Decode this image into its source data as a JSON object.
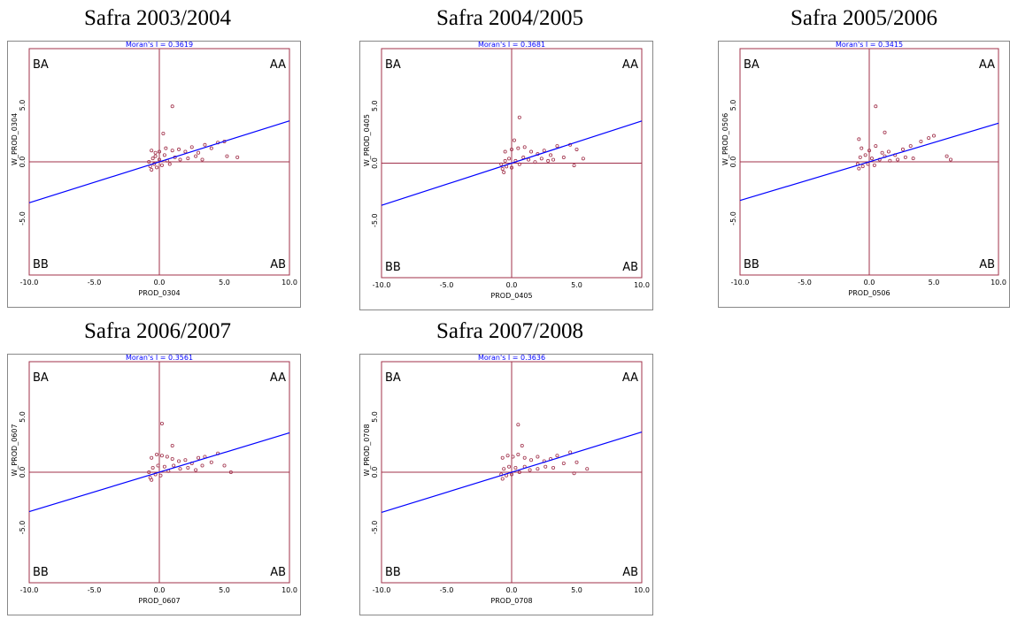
{
  "colors": {
    "regression": "#0000ff",
    "axes": "#a0304a",
    "points": "#a0304a",
    "frame": "#888888",
    "moran_text": "#0000ff"
  },
  "labels": {
    "quadrant_ha": "BA",
    "quadrant_hh": "AA",
    "quadrant_ll": "BB",
    "quadrant_lh": "AB"
  },
  "chart_data": [
    {
      "type": "scatter",
      "title": "Safra 2003/2004",
      "subtitle": "Moran's I = 0.3619",
      "xlabel": "PROD_0304",
      "ylabel": "W_PROD_0304",
      "xlim": [
        -10,
        10
      ],
      "ylim": [
        -10,
        10
      ],
      "slope": 0.3619,
      "x_ticks": [
        "-10.0",
        "-5.0",
        "0.0",
        "5.0",
        "10.0"
      ],
      "y_ticks": [
        "5.0",
        "0.0",
        "-5.0"
      ],
      "points": [
        [
          1.0,
          4.9
        ],
        [
          0.3,
          2.5
        ],
        [
          -0.6,
          1.0
        ],
        [
          -0.3,
          0.8
        ],
        [
          0.0,
          0.9
        ],
        [
          0.5,
          1.2
        ],
        [
          1.0,
          1.0
        ],
        [
          1.5,
          1.1
        ],
        [
          2.0,
          0.9
        ],
        [
          2.5,
          1.3
        ],
        [
          3.0,
          0.8
        ],
        [
          3.5,
          1.5
        ],
        [
          4.0,
          1.2
        ],
        [
          4.5,
          1.7
        ],
        [
          5.0,
          1.8
        ],
        [
          5.2,
          0.5
        ],
        [
          6.0,
          0.4
        ],
        [
          -0.8,
          0.0
        ],
        [
          -0.7,
          -0.4
        ],
        [
          -0.6,
          -0.7
        ],
        [
          -0.5,
          0.3
        ],
        [
          -0.4,
          -0.2
        ],
        [
          -0.3,
          0.5
        ],
        [
          -0.2,
          -0.5
        ],
        [
          0.0,
          0.2
        ],
        [
          0.2,
          -0.3
        ],
        [
          0.4,
          0.6
        ],
        [
          0.6,
          0.1
        ],
        [
          0.8,
          -0.2
        ],
        [
          1.2,
          0.4
        ],
        [
          1.6,
          0.2
        ],
        [
          2.2,
          0.3
        ],
        [
          2.8,
          0.5
        ],
        [
          3.3,
          0.2
        ]
      ]
    },
    {
      "type": "scatter",
      "title": "Safra 2004/2005",
      "subtitle": "Moran's I = 0.3681",
      "xlabel": "PROD_0405",
      "ylabel": "W_PROD_0405",
      "xlim": [
        -10,
        10
      ],
      "ylim": [
        -10,
        10
      ],
      "slope": 0.3681,
      "x_ticks": [
        "-10.0",
        "-5.0",
        "0.0",
        "5.0",
        "10.0"
      ],
      "y_ticks": [
        "5.0",
        "0.0",
        "-5.0"
      ],
      "points": [
        [
          0.6,
          4.0
        ],
        [
          0.2,
          2.0
        ],
        [
          -0.5,
          1.0
        ],
        [
          0.0,
          1.2
        ],
        [
          0.5,
          1.3
        ],
        [
          1.0,
          1.4
        ],
        [
          1.5,
          1.0
        ],
        [
          2.0,
          0.8
        ],
        [
          2.5,
          1.1
        ],
        [
          3.0,
          0.7
        ],
        [
          3.5,
          1.5
        ],
        [
          4.0,
          0.5
        ],
        [
          4.5,
          1.6
        ],
        [
          5.0,
          1.2
        ],
        [
          5.5,
          0.4
        ],
        [
          4.8,
          -0.2
        ],
        [
          -0.8,
          -0.1
        ],
        [
          -0.7,
          -0.5
        ],
        [
          -0.6,
          -0.8
        ],
        [
          -0.5,
          0.2
        ],
        [
          -0.4,
          -0.3
        ],
        [
          -0.2,
          0.4
        ],
        [
          0.0,
          -0.4
        ],
        [
          0.3,
          0.2
        ],
        [
          0.6,
          -0.1
        ],
        [
          0.9,
          0.5
        ],
        [
          1.3,
          0.3
        ],
        [
          1.8,
          0.1
        ],
        [
          2.3,
          0.4
        ],
        [
          2.8,
          0.2
        ],
        [
          3.2,
          0.3
        ]
      ]
    },
    {
      "type": "scatter",
      "title": "Safra 2005/2006",
      "subtitle": "Moran's I = 0.3415",
      "xlabel": "PROD_0506",
      "ylabel": "W_PROD_0506",
      "xlim": [
        -10,
        10
      ],
      "ylim": [
        -10,
        10
      ],
      "slope": 0.3415,
      "x_ticks": [
        "-10.0",
        "-5.0",
        "0.0",
        "5.0",
        "10.0"
      ],
      "y_ticks": [
        "5.0",
        "0.0",
        "-5.0"
      ],
      "points": [
        [
          0.5,
          4.9
        ],
        [
          1.2,
          2.6
        ],
        [
          -0.8,
          2.0
        ],
        [
          -0.6,
          1.2
        ],
        [
          0.0,
          1.0
        ],
        [
          0.5,
          1.4
        ],
        [
          1.0,
          0.8
        ],
        [
          1.5,
          0.9
        ],
        [
          2.0,
          0.6
        ],
        [
          2.6,
          1.1
        ],
        [
          3.2,
          1.4
        ],
        [
          4.0,
          1.8
        ],
        [
          4.6,
          2.1
        ],
        [
          5.0,
          2.3
        ],
        [
          6.0,
          0.5
        ],
        [
          6.3,
          0.2
        ],
        [
          -0.9,
          -0.2
        ],
        [
          -0.8,
          -0.6
        ],
        [
          -0.7,
          0.4
        ],
        [
          -0.5,
          -0.4
        ],
        [
          -0.3,
          0.6
        ],
        [
          -0.1,
          -0.2
        ],
        [
          0.2,
          0.3
        ],
        [
          0.4,
          -0.3
        ],
        [
          0.8,
          0.2
        ],
        [
          1.2,
          0.5
        ],
        [
          1.6,
          0.1
        ],
        [
          2.2,
          0.2
        ],
        [
          2.8,
          0.4
        ],
        [
          3.4,
          0.3
        ]
      ]
    },
    {
      "type": "scatter",
      "title": "Safra 2006/2007",
      "subtitle": "Moran's I = 0.3561",
      "xlabel": "PROD_0607",
      "ylabel": "W_PROD_0607",
      "xlim": [
        -10,
        10
      ],
      "ylim": [
        -10,
        10
      ],
      "slope": 0.3561,
      "x_ticks": [
        "-10.0",
        "-5.0",
        "0.0",
        "5.0",
        "10.0"
      ],
      "y_ticks": [
        "5.0",
        "0.0",
        "-5.0"
      ],
      "points": [
        [
          0.2,
          4.4
        ],
        [
          1.0,
          2.4
        ],
        [
          -0.6,
          1.3
        ],
        [
          -0.2,
          1.6
        ],
        [
          0.2,
          1.5
        ],
        [
          0.6,
          1.4
        ],
        [
          1.0,
          1.2
        ],
        [
          1.5,
          1.0
        ],
        [
          2.0,
          1.1
        ],
        [
          2.5,
          0.8
        ],
        [
          3.0,
          1.3
        ],
        [
          3.5,
          1.4
        ],
        [
          4.0,
          0.9
        ],
        [
          4.5,
          1.7
        ],
        [
          5.0,
          0.6
        ],
        [
          5.5,
          0.0
        ],
        [
          -0.8,
          0.0
        ],
        [
          -0.7,
          -0.5
        ],
        [
          -0.6,
          -0.7
        ],
        [
          -0.5,
          0.4
        ],
        [
          -0.3,
          -0.2
        ],
        [
          -0.1,
          0.6
        ],
        [
          0.1,
          -0.3
        ],
        [
          0.4,
          0.5
        ],
        [
          0.7,
          0.1
        ],
        [
          1.1,
          0.6
        ],
        [
          1.6,
          0.3
        ],
        [
          2.2,
          0.4
        ],
        [
          2.8,
          0.2
        ],
        [
          3.3,
          0.6
        ]
      ]
    },
    {
      "type": "scatter",
      "title": "Safra 2007/2008",
      "subtitle": "Moran's I = 0.3636",
      "xlabel": "PROD_0708",
      "ylabel": "W_PROD_0708",
      "xlim": [
        -10,
        10
      ],
      "ylim": [
        -10,
        10
      ],
      "slope": 0.3636,
      "x_ticks": [
        "-10.0",
        "-5.0",
        "0.0",
        "5.0",
        "10.0"
      ],
      "y_ticks": [
        "5.0",
        "0.0",
        "-5.0"
      ],
      "points": [
        [
          0.5,
          4.3
        ],
        [
          0.8,
          2.4
        ],
        [
          -0.7,
          1.3
        ],
        [
          -0.3,
          1.5
        ],
        [
          0.1,
          1.4
        ],
        [
          0.5,
          1.6
        ],
        [
          1.0,
          1.3
        ],
        [
          1.5,
          1.1
        ],
        [
          2.0,
          1.4
        ],
        [
          2.5,
          1.0
        ],
        [
          3.0,
          1.2
        ],
        [
          3.5,
          1.5
        ],
        [
          4.0,
          0.8
        ],
        [
          4.5,
          1.8
        ],
        [
          5.0,
          0.9
        ],
        [
          5.8,
          0.3
        ],
        [
          4.8,
          -0.1
        ],
        [
          -0.8,
          -0.2
        ],
        [
          -0.7,
          -0.6
        ],
        [
          -0.6,
          0.3
        ],
        [
          -0.4,
          -0.3
        ],
        [
          -0.2,
          0.5
        ],
        [
          0.0,
          -0.2
        ],
        [
          0.3,
          0.4
        ],
        [
          0.6,
          0.0
        ],
        [
          1.0,
          0.5
        ],
        [
          1.4,
          0.2
        ],
        [
          2.0,
          0.3
        ],
        [
          2.6,
          0.5
        ],
        [
          3.2,
          0.4
        ]
      ]
    }
  ]
}
